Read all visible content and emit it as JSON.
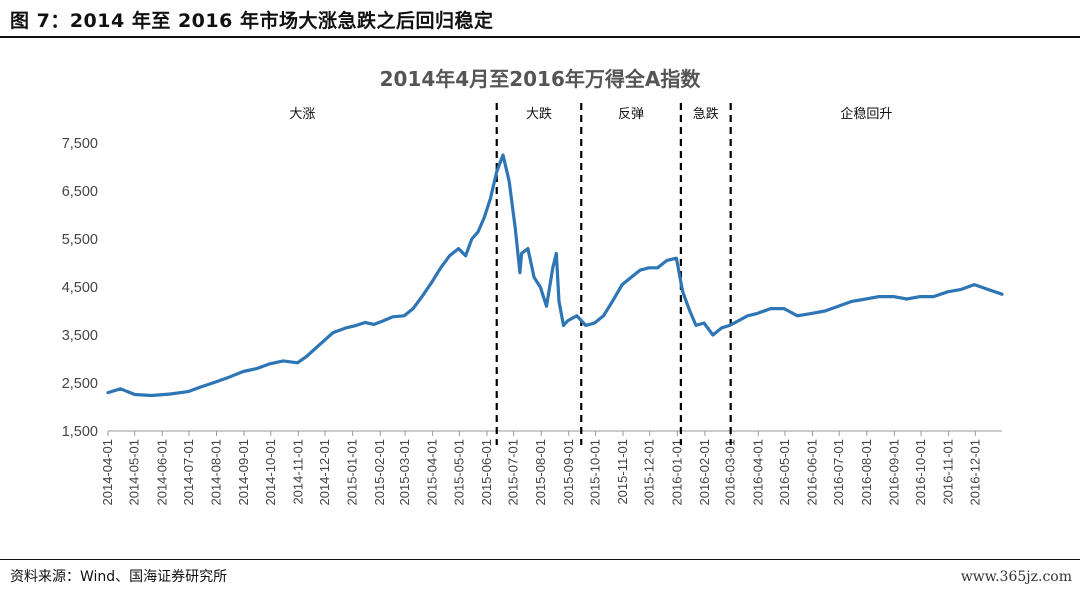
{
  "figure": {
    "header": "图 7：2014 年至 2016 年市场大涨急跌之后回归稳定",
    "source": "资料来源：Wind、国海证券研究所",
    "watermark": "www.365jz.com"
  },
  "chart_data": {
    "type": "line",
    "title": "2014年4月至2016年万得全A指数",
    "xlabel": "",
    "ylabel": "",
    "ylim": [
      1500,
      7500
    ],
    "yticks": [
      1500,
      2500,
      3500,
      4500,
      5500,
      6500,
      7500
    ],
    "ytick_labels": [
      "1,500",
      "2,500",
      "3,500",
      "4,500",
      "5,500",
      "6,500",
      "7,500"
    ],
    "x_start": "2014-04-01",
    "x_end": "2016-12-31",
    "xtick_labels": [
      "2014-04-01",
      "2014-05-01",
      "2014-06-01",
      "2014-07-01",
      "2014-08-01",
      "2014-09-01",
      "2014-10-01",
      "2014-11-01",
      "2014-12-01",
      "2015-01-01",
      "2015-02-01",
      "2015-03-01",
      "2015-04-01",
      "2015-05-01",
      "2015-06-01",
      "2015-07-01",
      "2015-08-01",
      "2015-09-01",
      "2015-10-01",
      "2015-11-01",
      "2015-12-01",
      "2016-01-01",
      "2016-02-01",
      "2016-03-01",
      "2016-04-01",
      "2016-05-01",
      "2016-06-01",
      "2016-07-01",
      "2016-08-01",
      "2016-09-01",
      "2016-10-01",
      "2016-11-01",
      "2016-12-01"
    ],
    "grid": false,
    "line_color": "#2E75B6",
    "series": [
      {
        "name": "",
        "x": [
          "2014-04-01",
          "2014-04-15",
          "2014-05-01",
          "2014-05-20",
          "2014-06-10",
          "2014-06-30",
          "2014-07-15",
          "2014-07-31",
          "2014-08-15",
          "2014-08-31",
          "2014-09-15",
          "2014-09-30",
          "2014-10-15",
          "2014-10-31",
          "2014-11-10",
          "2014-11-25",
          "2014-12-10",
          "2014-12-25",
          "2015-01-05",
          "2015-01-15",
          "2015-01-25",
          "2015-02-05",
          "2015-02-15",
          "2015-02-28",
          "2015-03-10",
          "2015-03-20",
          "2015-03-31",
          "2015-04-10",
          "2015-04-20",
          "2015-04-30",
          "2015-05-08",
          "2015-05-15",
          "2015-05-22",
          "2015-05-29",
          "2015-06-05",
          "2015-06-12",
          "2015-06-19",
          "2015-06-26",
          "2015-07-03",
          "2015-07-08",
          "2015-07-10",
          "2015-07-17",
          "2015-07-24",
          "2015-07-31",
          "2015-08-07",
          "2015-08-14",
          "2015-08-18",
          "2015-08-21",
          "2015-08-26",
          "2015-08-31",
          "2015-09-10",
          "2015-09-20",
          "2015-09-30",
          "2015-10-10",
          "2015-10-20",
          "2015-10-31",
          "2015-11-10",
          "2015-11-20",
          "2015-11-30",
          "2015-12-10",
          "2015-12-20",
          "2015-12-31",
          "2016-01-07",
          "2016-01-15",
          "2016-01-22",
          "2016-01-31",
          "2016-02-10",
          "2016-02-20",
          "2016-02-29",
          "2016-03-10",
          "2016-03-20",
          "2016-03-31",
          "2016-04-15",
          "2016-04-30",
          "2016-05-15",
          "2016-05-31",
          "2016-06-15",
          "2016-06-30",
          "2016-07-15",
          "2016-07-31",
          "2016-08-15",
          "2016-08-31",
          "2016-09-15",
          "2016-09-30",
          "2016-10-15",
          "2016-10-31",
          "2016-11-15",
          "2016-11-30",
          "2016-12-15",
          "2016-12-31"
        ],
        "values": [
          2300,
          2380,
          2260,
          2240,
          2270,
          2320,
          2420,
          2520,
          2620,
          2740,
          2800,
          2900,
          2960,
          2920,
          3050,
          3300,
          3550,
          3650,
          3700,
          3760,
          3720,
          3800,
          3880,
          3900,
          4050,
          4300,
          4600,
          4900,
          5150,
          5300,
          5150,
          5500,
          5650,
          5950,
          6350,
          6900,
          7250,
          6700,
          5700,
          4800,
          5200,
          5300,
          4700,
          4500,
          4100,
          4900,
          5200,
          4200,
          3700,
          3800,
          3900,
          3700,
          3750,
          3900,
          4200,
          4550,
          4700,
          4850,
          4900,
          4900,
          5050,
          5100,
          4400,
          4000,
          3700,
          3750,
          3500,
          3650,
          3700,
          3800,
          3900,
          3950,
          4050,
          4050,
          3900,
          3950,
          4000,
          4100,
          4200,
          4250,
          4300,
          4300,
          4250,
          4300,
          4300,
          4400,
          4450,
          4550,
          4450,
          4350
        ]
      }
    ],
    "phase_markers": [
      "2015-06-12",
      "2015-09-15",
      "2016-01-05",
      "2016-03-01"
    ],
    "phase_labels": [
      "大涨",
      "大跌",
      "反弹",
      "急跌",
      "企稳回升"
    ]
  }
}
